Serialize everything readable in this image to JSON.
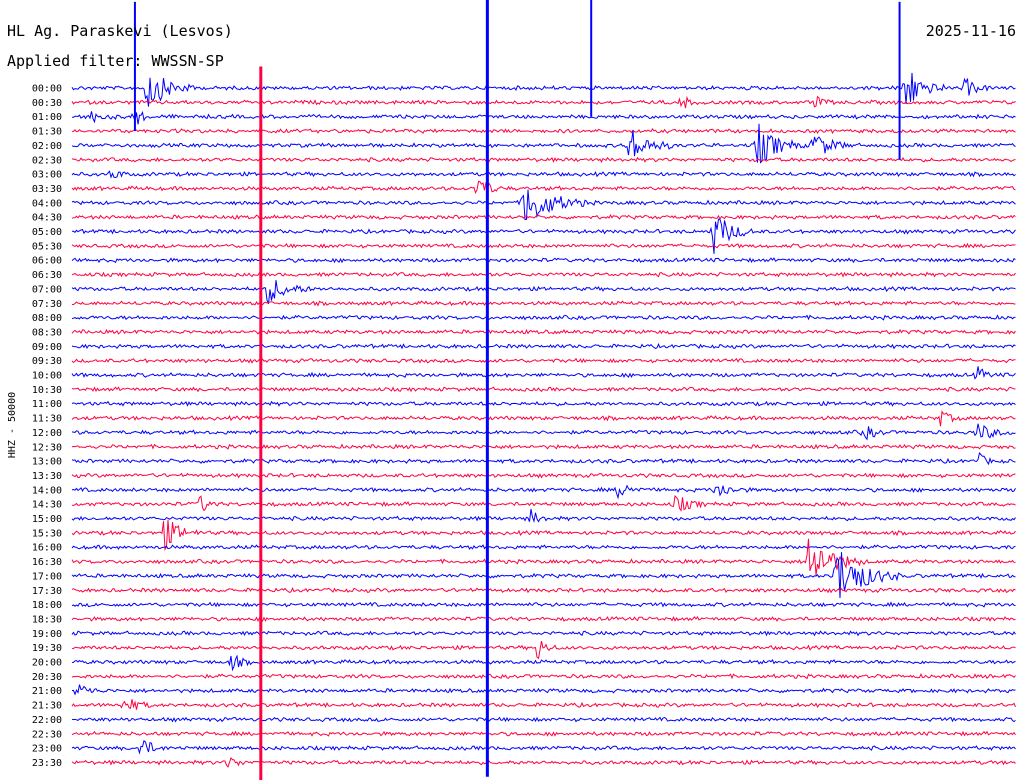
{
  "header": {
    "station": "HL Ag. Paraskevi (Lesvos)",
    "filter": "Applied filter: WWSSN-SP",
    "date": "2025-11-16"
  },
  "chart_data": {
    "type": "line",
    "title": "HL Ag. Paraskevi (Lesvos)",
    "subtitle": "Applied filter: WWSSN-SP",
    "ylabel": "HHZ - 50000",
    "xlabel": "",
    "grid": false,
    "series_colors": [
      "#0000ff",
      "#ff0040"
    ],
    "row_labels": [
      "00:00",
      "00:30",
      "01:00",
      "01:30",
      "02:00",
      "02:30",
      "03:00",
      "03:30",
      "04:00",
      "04:30",
      "05:00",
      "05:30",
      "06:00",
      "06:30",
      "07:00",
      "07:30",
      "08:00",
      "08:30",
      "09:00",
      "09:30",
      "10:00",
      "10:30",
      "11:00",
      "11:30",
      "12:00",
      "12:30",
      "13:00",
      "13:30",
      "14:00",
      "14:30",
      "15:00",
      "15:30",
      "16:00",
      "16:30",
      "17:00",
      "17:30",
      "18:00",
      "18:30",
      "19:00",
      "19:30",
      "20:00",
      "20:30",
      "21:00",
      "21:30",
      "22:00",
      "22:30",
      "23:00",
      "23:30"
    ],
    "row_minutes": 30,
    "events": [
      {
        "row": 0,
        "minute": 2.4,
        "amp": 3.0,
        "dur": 1.6
      },
      {
        "row": 0,
        "minute": 28.4,
        "amp": 1.3,
        "dur": 0.8
      },
      {
        "row": 0,
        "minute": 26.5,
        "amp": 3.5,
        "dur": 1.2
      },
      {
        "row": 1,
        "minute": 19.4,
        "amp": 1.0,
        "dur": 0.5
      },
      {
        "row": 1,
        "minute": 23.6,
        "amp": 0.9,
        "dur": 0.6
      },
      {
        "row": 2,
        "minute": 0.6,
        "amp": 0.8,
        "dur": 0.8
      },
      {
        "row": 2,
        "minute": 2.0,
        "amp": 1.5,
        "dur": 0.5
      },
      {
        "row": 4,
        "minute": 17.7,
        "amp": 2.5,
        "dur": 1.5
      },
      {
        "row": 4,
        "minute": 21.8,
        "amp": 3.0,
        "dur": 1.5
      },
      {
        "row": 4,
        "minute": 23.6,
        "amp": 2.0,
        "dur": 1.2
      },
      {
        "row": 6,
        "minute": 1.3,
        "amp": 0.8,
        "dur": 0.6
      },
      {
        "row": 7,
        "minute": 12.9,
        "amp": 2.0,
        "dur": 0.8
      },
      {
        "row": 8,
        "minute": 14.4,
        "amp": 3.5,
        "dur": 2.0
      },
      {
        "row": 10,
        "minute": 20.4,
        "amp": 3.0,
        "dur": 1.3
      },
      {
        "row": 14,
        "minute": 6.2,
        "amp": 2.0,
        "dur": 1.5
      },
      {
        "row": 20,
        "minute": 28.8,
        "amp": 1.1,
        "dur": 0.5
      },
      {
        "row": 23,
        "minute": 27.6,
        "amp": 1.0,
        "dur": 0.8
      },
      {
        "row": 24,
        "minute": 25.2,
        "amp": 1.0,
        "dur": 0.8
      },
      {
        "row": 24,
        "minute": 28.8,
        "amp": 1.2,
        "dur": 1.2
      },
      {
        "row": 26,
        "minute": 28.8,
        "amp": 1.2,
        "dur": 0.5
      },
      {
        "row": 28,
        "minute": 17.4,
        "amp": 1.3,
        "dur": 0.8
      },
      {
        "row": 28,
        "minute": 20.5,
        "amp": 1.2,
        "dur": 1.0
      },
      {
        "row": 29,
        "minute": 4.1,
        "amp": 1.2,
        "dur": 0.6
      },
      {
        "row": 29,
        "minute": 19.2,
        "amp": 1.3,
        "dur": 1.0
      },
      {
        "row": 30,
        "minute": 14.6,
        "amp": 1.2,
        "dur": 0.6
      },
      {
        "row": 31,
        "minute": 2.9,
        "amp": 2.5,
        "dur": 1.2
      },
      {
        "row": 33,
        "minute": 23.4,
        "amp": 4.0,
        "dur": 1.8
      },
      {
        "row": 34,
        "minute": 24.3,
        "amp": 4.5,
        "dur": 2.0
      },
      {
        "row": 39,
        "minute": 14.8,
        "amp": 1.8,
        "dur": 0.6
      },
      {
        "row": 40,
        "minute": 5.1,
        "amp": 1.2,
        "dur": 0.6
      },
      {
        "row": 42,
        "minute": 0.2,
        "amp": 1.0,
        "dur": 0.8
      },
      {
        "row": 43,
        "minute": 1.7,
        "amp": 1.4,
        "dur": 0.8
      },
      {
        "row": 46,
        "minute": 2.2,
        "amp": 1.5,
        "dur": 0.8
      },
      {
        "row": 47,
        "minute": 5.0,
        "amp": 1.0,
        "dur": 0.6
      }
    ],
    "spikes": [
      {
        "row": 0,
        "minute": 13.2,
        "up": 6.5,
        "down": 48.0
      },
      {
        "row": 0,
        "minute": 16.5,
        "up": 6.5,
        "down": 2.0
      },
      {
        "row": 1,
        "minute": 6.0,
        "up": 2.5,
        "down": 48.0
      },
      {
        "row": 0,
        "minute": 2.0,
        "up": 6.0,
        "down": 3.0
      },
      {
        "row": 0,
        "minute": 26.3,
        "up": 6.0,
        "down": 5.0
      }
    ]
  }
}
